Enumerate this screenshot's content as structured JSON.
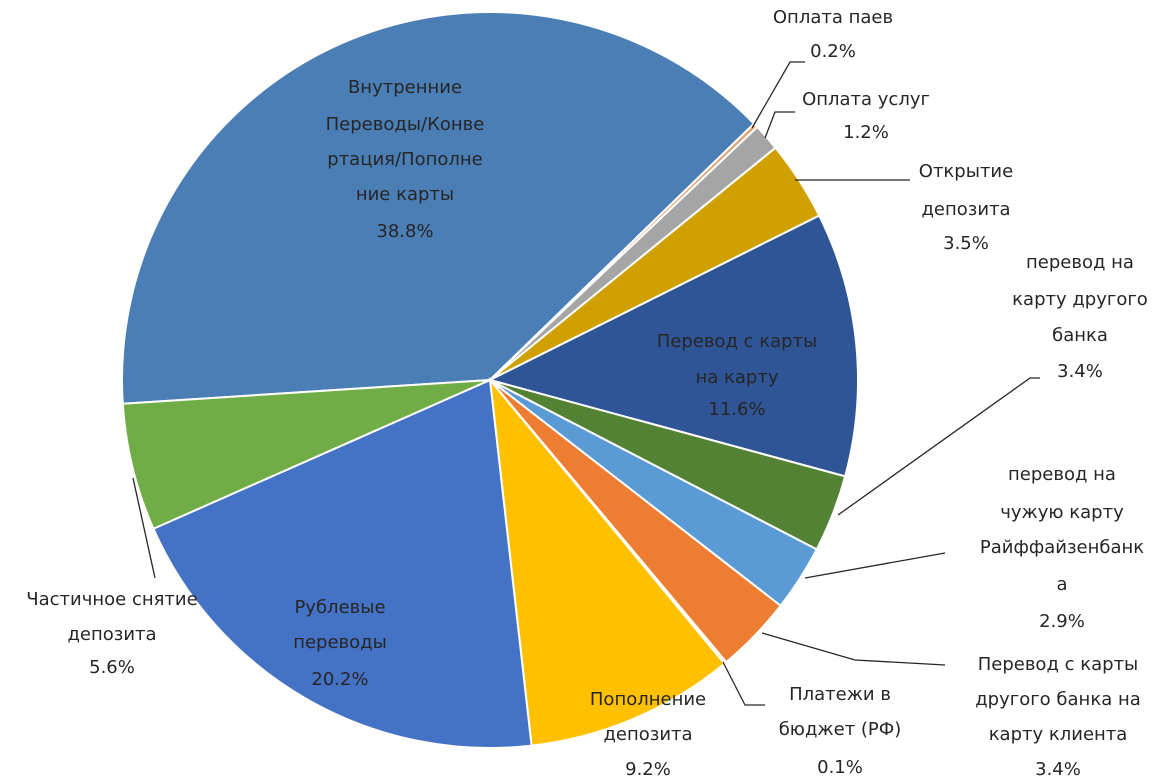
{
  "chart_data": {
    "type": "pie",
    "categories": [
      [
        "Внутренние",
        "Переводы/Конве",
        "ртация/Пополне",
        "ние карты"
      ],
      [
        "Оплата паев"
      ],
      [
        "Оплата услуг"
      ],
      [
        "Открытие",
        "депозита"
      ],
      [
        "Перевод с карты",
        "на карту"
      ],
      [
        "перевод на",
        "карту другого",
        "банка"
      ],
      [
        "перевод на",
        "чужую карту",
        "Райффайзенбанк",
        "а"
      ],
      [
        "Перевод с карты",
        "другого банка на",
        "карту клиента"
      ],
      [
        "Платежи в",
        "бюджет (РФ)"
      ],
      [
        "Пополнение",
        "депозита"
      ],
      [
        "Рублевые",
        "переводы"
      ],
      [
        "Частичное снятие",
        "депозита"
      ]
    ],
    "values": [
      38.8,
      0.2,
      1.2,
      3.5,
      11.6,
      3.4,
      2.9,
      3.4,
      0.1,
      9.2,
      20.2,
      5.6
    ],
    "value_labels": [
      "38.8%",
      "0.2%",
      "1.2%",
      "3.5%",
      "11.6%",
      "3.4%",
      "2.9%",
      "3.4%",
      "0.1%",
      "9.2%",
      "20.2%",
      "5.6%"
    ],
    "colors": [
      "#4a7eb5",
      "#e0a070",
      "#a5a5a5",
      "#d0a000",
      "#2f5597",
      "#548235",
      "#5b9bd5",
      "#ed7d31",
      "#7f7f7f",
      "#ffc000",
      "#4472c4",
      "#70ad47"
    ]
  }
}
